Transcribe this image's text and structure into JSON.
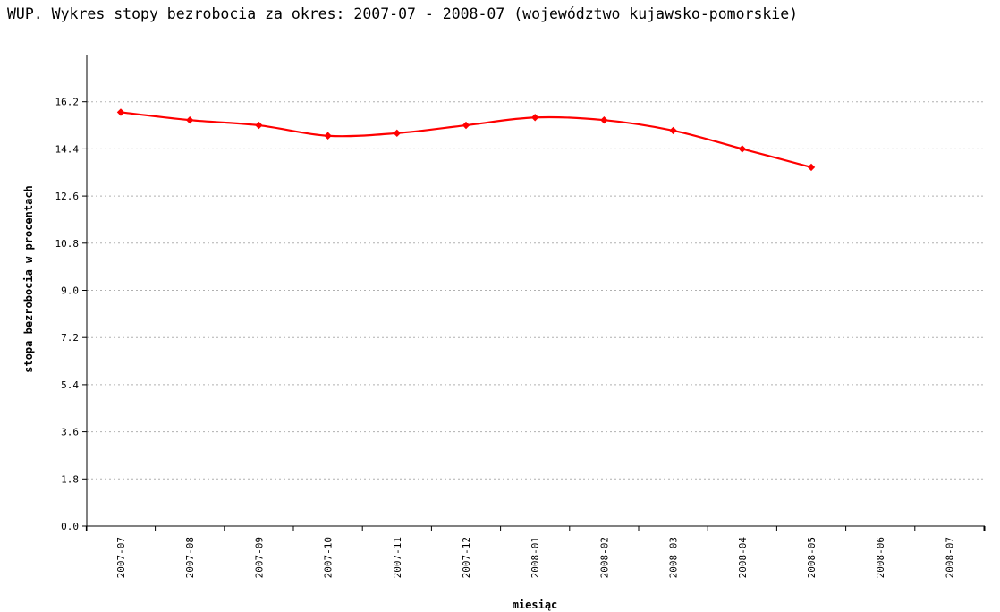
{
  "chart_data": {
    "type": "line",
    "title": "WUP. Wykres stopy bezrobocia za okres: 2007-07 - 2008-07 (województwo kujawsko-pomorskie)",
    "xlabel": "miesiąc",
    "ylabel": "stopa bezrobocia w procentach",
    "categories": [
      "2007-07",
      "2007-08",
      "2007-09",
      "2007-10",
      "2007-11",
      "2007-12",
      "2008-01",
      "2008-02",
      "2008-03",
      "2008-04",
      "2008-05",
      "2008-06",
      "2008-07"
    ],
    "yticks": [
      "0.0",
      "1.8",
      "3.6",
      "5.4",
      "7.2",
      "9.0",
      "10.8",
      "12.6",
      "14.4",
      "16.2"
    ],
    "ylim": [
      0,
      18
    ],
    "grid": true,
    "series": [
      {
        "values": [
          15.8,
          15.5,
          15.3,
          14.9,
          15.0,
          15.3,
          15.6,
          15.5,
          15.1,
          14.4,
          13.7,
          null,
          null
        ],
        "color": "#ff0000"
      }
    ]
  }
}
